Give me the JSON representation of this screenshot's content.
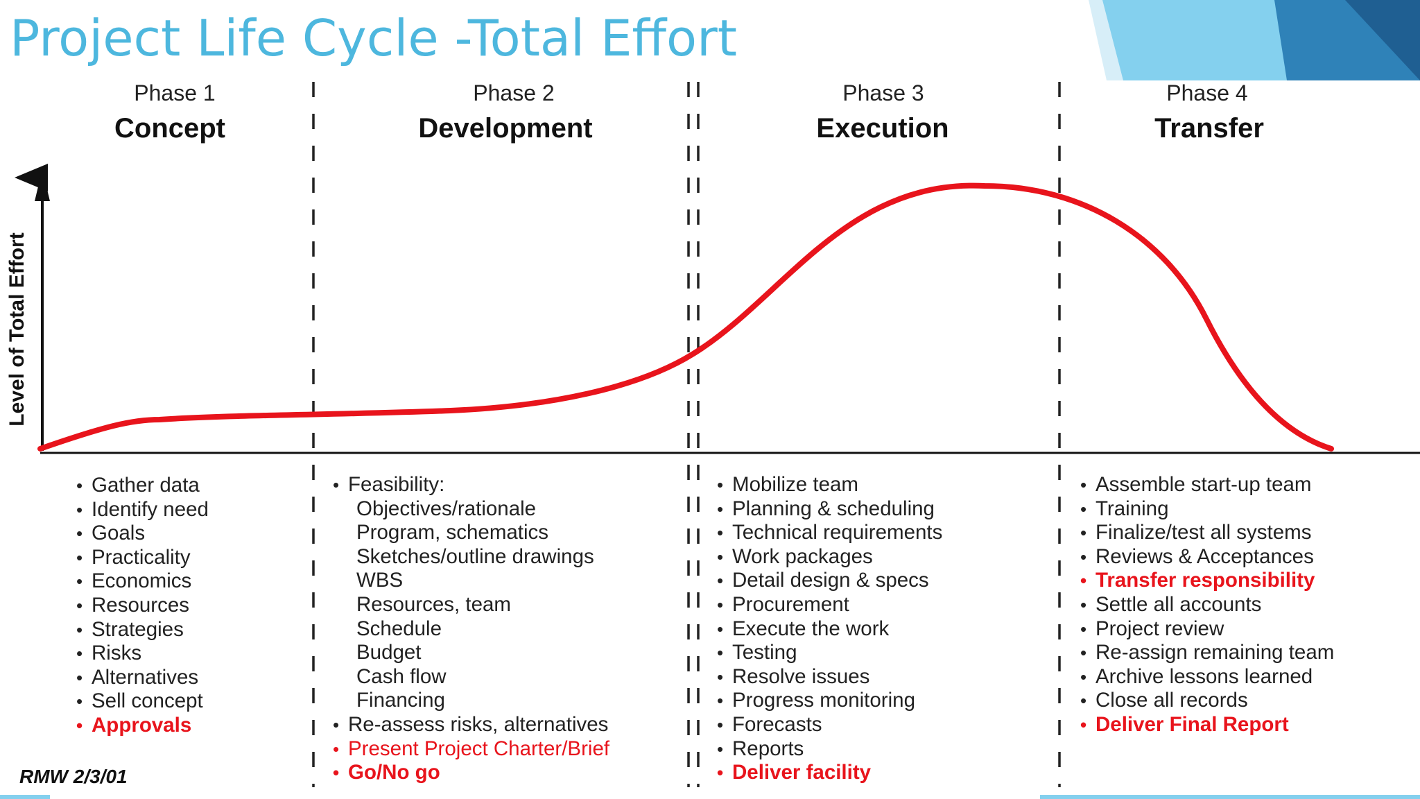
{
  "slide": {
    "title": "Project Life Cycle -Total Effort"
  },
  "diagram": {
    "y_axis_label": "Level of Total Effort",
    "curve_color": "#e8141c",
    "title_color": "#4db7de",
    "phases": [
      {
        "number": "Phase 1",
        "name": "Concept",
        "tasks": [
          {
            "text": "Gather data"
          },
          {
            "text": "Identify need"
          },
          {
            "text": "Goals"
          },
          {
            "text": "Practicality"
          },
          {
            "text": "Economics"
          },
          {
            "text": "Resources"
          },
          {
            "text": "Strategies"
          },
          {
            "text": "Risks"
          },
          {
            "text": "Alternatives"
          },
          {
            "text": "Sell concept"
          },
          {
            "text": "Approvals",
            "highlight": "red-bold"
          }
        ]
      },
      {
        "number": "Phase 2",
        "name": "Development",
        "tasks": [
          {
            "text": "Feasibility:"
          },
          {
            "text": "Objectives/rationale",
            "sub": true
          },
          {
            "text": "Program, schematics",
            "sub": true
          },
          {
            "text": "Sketches/outline drawings",
            "sub": true
          },
          {
            "text": "WBS",
            "sub": true
          },
          {
            "text": "Resources, team",
            "sub": true
          },
          {
            "text": "Schedule",
            "sub": true
          },
          {
            "text": "Budget",
            "sub": true
          },
          {
            "text": "Cash flow",
            "sub": true
          },
          {
            "text": "Financing",
            "sub": true
          },
          {
            "text": "Re-assess risks, alternatives"
          },
          {
            "text": "Present Project Charter/Brief",
            "highlight": "red"
          },
          {
            "text": "Go/No go",
            "highlight": "red-bold"
          }
        ]
      },
      {
        "number": "Phase 3",
        "name": "Execution",
        "tasks": [
          {
            "text": "Mobilize team"
          },
          {
            "text": "Planning & scheduling"
          },
          {
            "text": "Technical requirements"
          },
          {
            "text": "Work packages"
          },
          {
            "text": "Detail design & specs"
          },
          {
            "text": "Procurement"
          },
          {
            "text": "Execute the work"
          },
          {
            "text": "Testing"
          },
          {
            "text": "Resolve issues"
          },
          {
            "text": "Progress monitoring"
          },
          {
            "text": "Forecasts"
          },
          {
            "text": "Reports"
          },
          {
            "text": "Deliver facility",
            "highlight": "red-bold"
          }
        ]
      },
      {
        "number": "Phase 4",
        "name": "Transfer",
        "tasks": [
          {
            "text": "Assemble start-up team"
          },
          {
            "text": "Training"
          },
          {
            "text": "Finalize/test all systems"
          },
          {
            "text": "Reviews & Acceptances"
          },
          {
            "text": "Transfer responsibility",
            "highlight": "red-bold"
          },
          {
            "text": "Settle all accounts"
          },
          {
            "text": "Project review"
          },
          {
            "text": "Re-assign remaining team"
          },
          {
            "text": "Archive lessons learned"
          },
          {
            "text": "Close all records"
          },
          {
            "text": "Deliver Final Report",
            "highlight": "red-bold"
          }
        ]
      }
    ],
    "signature": "RMW 2/3/01"
  }
}
